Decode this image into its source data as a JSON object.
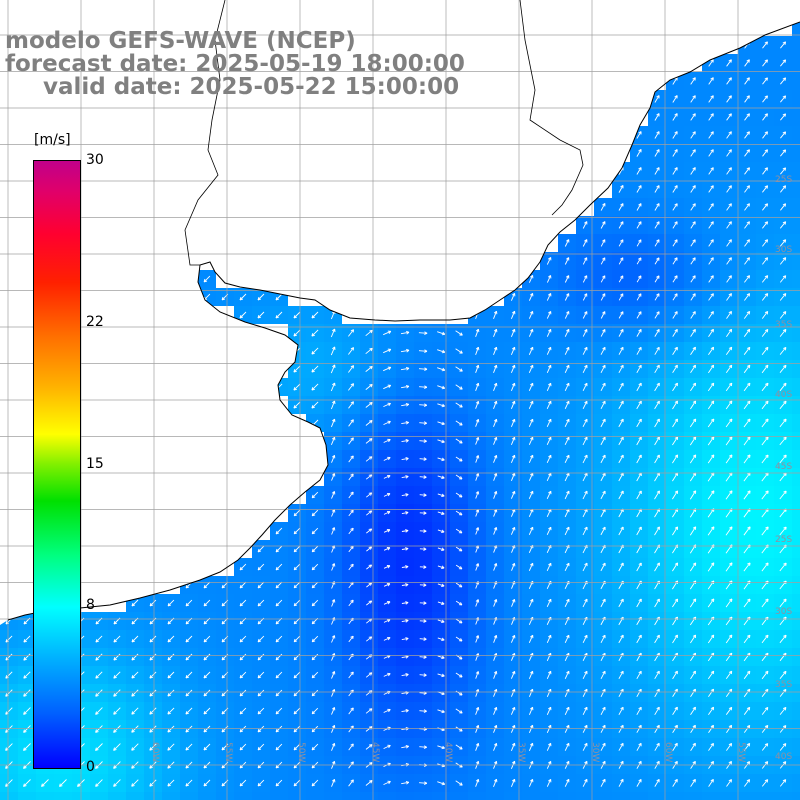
{
  "title": {
    "line1": "modelo GEFS-WAVE (NCEP)",
    "line2": "forecast date: 2025-05-19 18:00:00",
    "line3": "valid date: 2025-05-22 15:00:00"
  },
  "colorbar": {
    "units": "[m/s]",
    "min": 0,
    "max": 30,
    "ticks": [
      "30",
      "22",
      "15",
      "8",
      "0"
    ],
    "tick_values": [
      30,
      22,
      15,
      8,
      0
    ],
    "colors": [
      "#0000ff",
      "#00b0ff",
      "#00ffff",
      "#00e000",
      "#ffff00",
      "#ff7000",
      "#ff0030",
      "#c0008a"
    ]
  },
  "map": {
    "projection": "lat-lon",
    "gridlines": true,
    "grid_color": "#a0a0a0",
    "land_color": "#ffffff",
    "coastline_color": "#000000",
    "lat_labels": [
      "25S",
      "30S",
      "35S",
      "40S",
      "45S"
    ],
    "lon_labels": [
      "60W",
      "55W",
      "50W",
      "45W",
      "40W",
      "35W",
      "30W"
    ],
    "vector_color": "#ffffff"
  }
}
